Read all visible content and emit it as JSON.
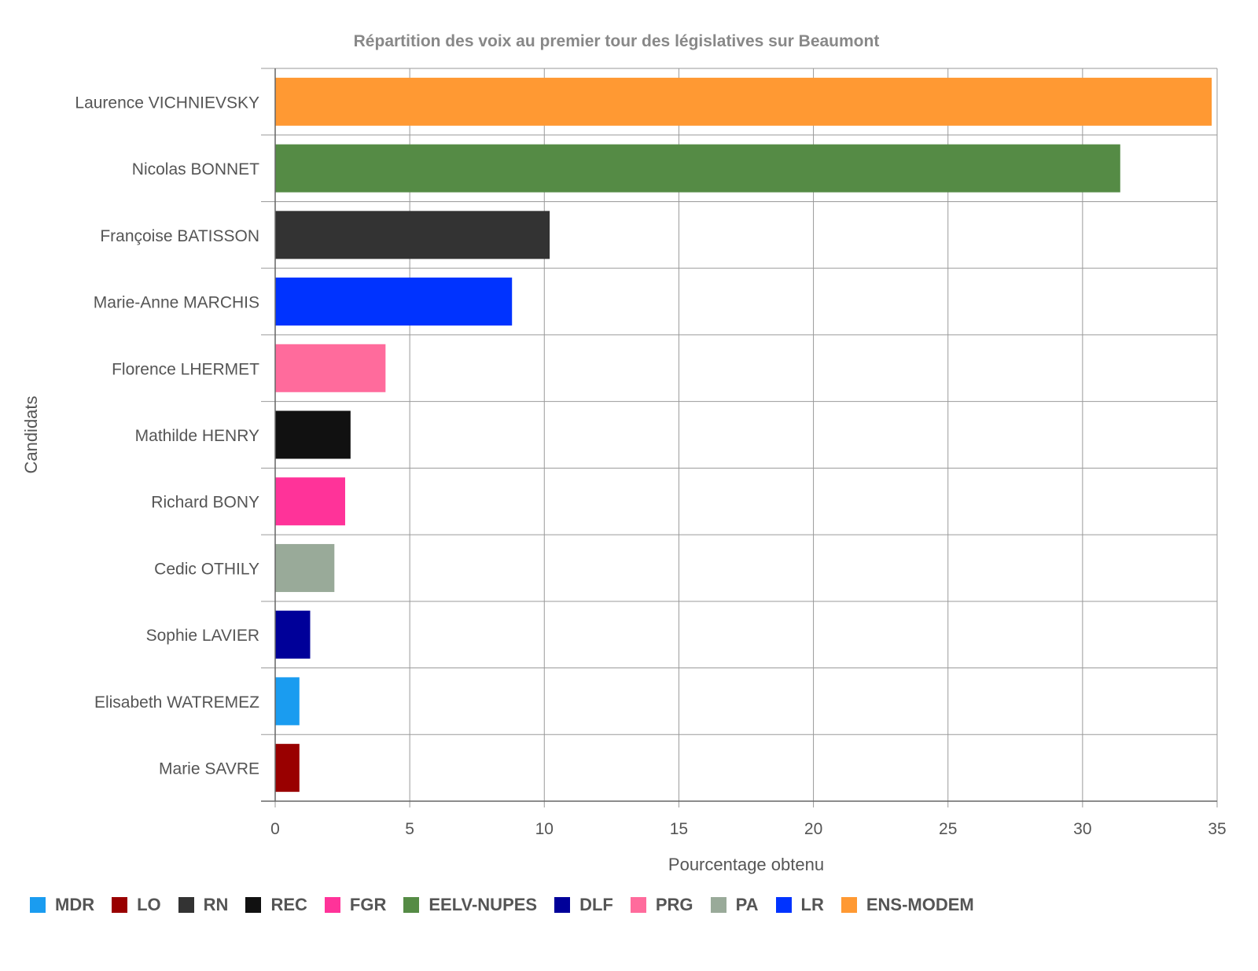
{
  "chart_data": {
    "type": "bar",
    "orientation": "horizontal",
    "title": "Répartition des voix au premier tour des législatives sur Beaumont",
    "xlabel": "Pourcentage obtenu",
    "ylabel": "Candidats",
    "xlim": [
      0,
      35
    ],
    "xticks": [
      "0",
      "5",
      "10",
      "15",
      "20",
      "25",
      "30",
      "35"
    ],
    "grid": true,
    "legend_position": "bottom-left",
    "categories": [
      "Laurence VICHNIEVSKY",
      "Nicolas BONNET",
      "Françoise BATISSON",
      "Marie-Anne MARCHIS",
      "Florence LHERMET",
      "Mathilde HENRY",
      "Richard BONY",
      "Cedic OTHILY",
      "Sophie LAVIER",
      "Elisabeth WATREMEZ",
      "Marie SAVRE"
    ],
    "values": [
      34.8,
      31.4,
      10.2,
      8.8,
      4.1,
      2.8,
      2.6,
      2.2,
      1.3,
      0.9,
      0.9
    ],
    "parties": [
      "ENS-MODEM",
      "EELV-NUPES",
      "RN",
      "LR",
      "PRG",
      "REC",
      "FGR",
      "PA",
      "DLF",
      "MDR",
      "LO"
    ],
    "legend": [
      {
        "label": "MDR",
        "color": "#1a9cf0"
      },
      {
        "label": "LO",
        "color": "#990000"
      },
      {
        "label": "RN",
        "color": "#333333"
      },
      {
        "label": "REC",
        "color": "#111111"
      },
      {
        "label": "FGR",
        "color": "#ff3399"
      },
      {
        "label": "EELV-NUPES",
        "color": "#558b45"
      },
      {
        "label": "DLF",
        "color": "#000099"
      },
      {
        "label": "PRG",
        "color": "#ff6b9c"
      },
      {
        "label": "PA",
        "color": "#99aa99"
      },
      {
        "label": "LR",
        "color": "#0033ff"
      },
      {
        "label": "ENS-MODEM",
        "color": "#ff9933"
      }
    ]
  }
}
